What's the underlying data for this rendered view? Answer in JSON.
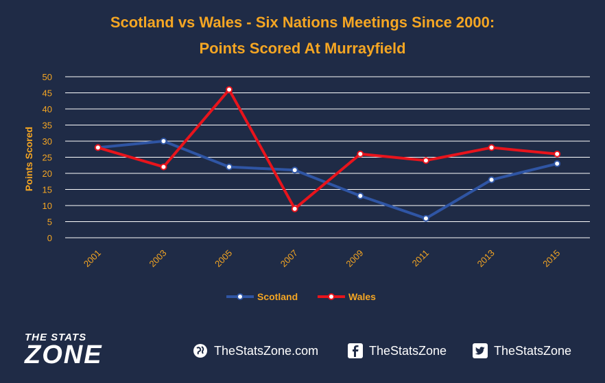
{
  "chart_data": {
    "type": "line",
    "title": "Scotland vs Wales - Six Nations Meetings Since 2000:",
    "subtitle": "Points Scored At Murrayfield",
    "xlabel": "",
    "ylabel": "Points Scored",
    "categories": [
      "2001",
      "2003",
      "2005",
      "2007",
      "2009",
      "2011",
      "2013",
      "2015"
    ],
    "ylim": [
      0,
      50
    ],
    "yticks": [
      0,
      5,
      10,
      15,
      20,
      25,
      30,
      35,
      40,
      45,
      50
    ],
    "grid": true,
    "legend": "bottom",
    "series": [
      {
        "name": "Scotland",
        "color": "#2f55a4",
        "values": [
          28,
          30,
          22,
          21,
          13,
          6,
          18,
          23
        ]
      },
      {
        "name": "Wales",
        "color": "#e8141c",
        "values": [
          28,
          22,
          46,
          9,
          26,
          24,
          28,
          26
        ]
      }
    ]
  },
  "footer": {
    "logo_top": "THE STATS",
    "logo_bottom": "ZONE",
    "website": "TheStatsZone.com",
    "facebook": "TheStatsZone",
    "twitter": "TheStatsZone",
    "icons": [
      "globe-icon",
      "facebook-icon",
      "twitter-icon"
    ]
  },
  "colors": {
    "background": "#1f2b46",
    "accent": "#f5a623",
    "grid": "#ffffff"
  }
}
